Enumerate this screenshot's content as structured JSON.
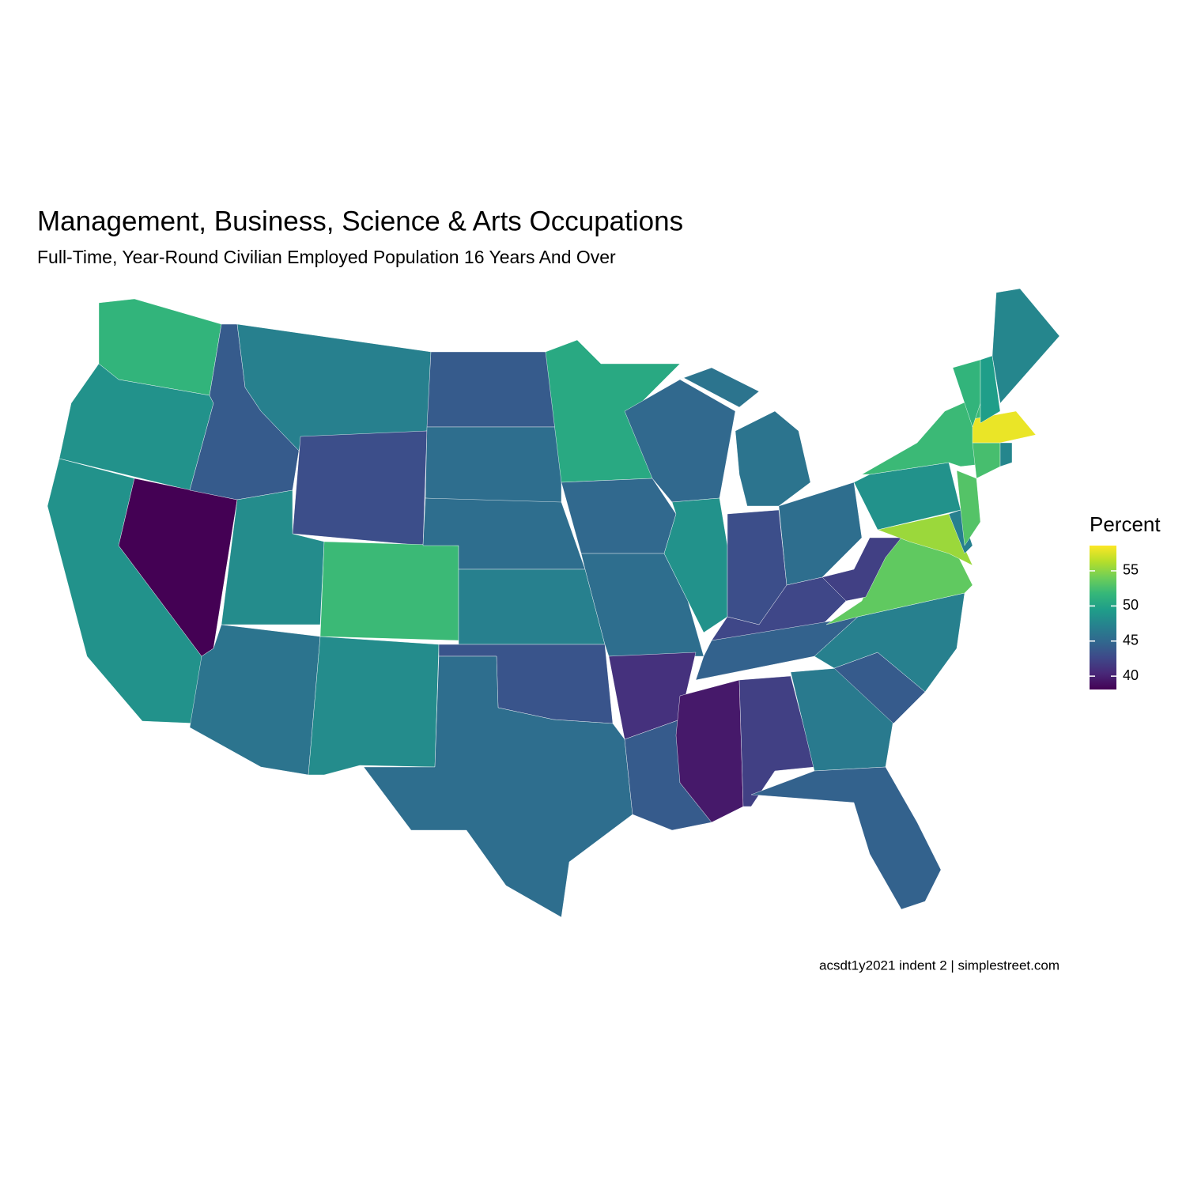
{
  "chart_data": {
    "type": "choropleth",
    "title": "Management, Business, Science & Arts Occupations",
    "subtitle": "Full-Time, Year-Round Civilian Employed Population 16 Years And Over",
    "caption": "acsdt1y2021 indent 2 | simplestreet.com",
    "legend_title": "Percent",
    "colormap": "viridis",
    "lim": [
      38.1,
      58.6
    ],
    "ticks": [
      40,
      45,
      50,
      55
    ],
    "values": [
      51.5,
      48.5,
      48.5,
      38,
      44,
      47,
      43,
      48,
      52,
      46,
      48,
      44,
      45.5,
      45.5,
      47,
      43.5,
      45.5,
      50.5,
      45,
      45.5,
      41,
      44,
      45,
      48.5,
      46,
      43,
      45.5,
      42.5,
      44.5,
      39.5,
      42,
      46.5,
      44.5,
      44,
      47,
      53.5,
      42,
      55.5,
      47,
      48.5,
      53,
      52,
      52.5,
      47.5,
      58,
      51.5,
      49.5,
      47.5
    ]
  }
}
